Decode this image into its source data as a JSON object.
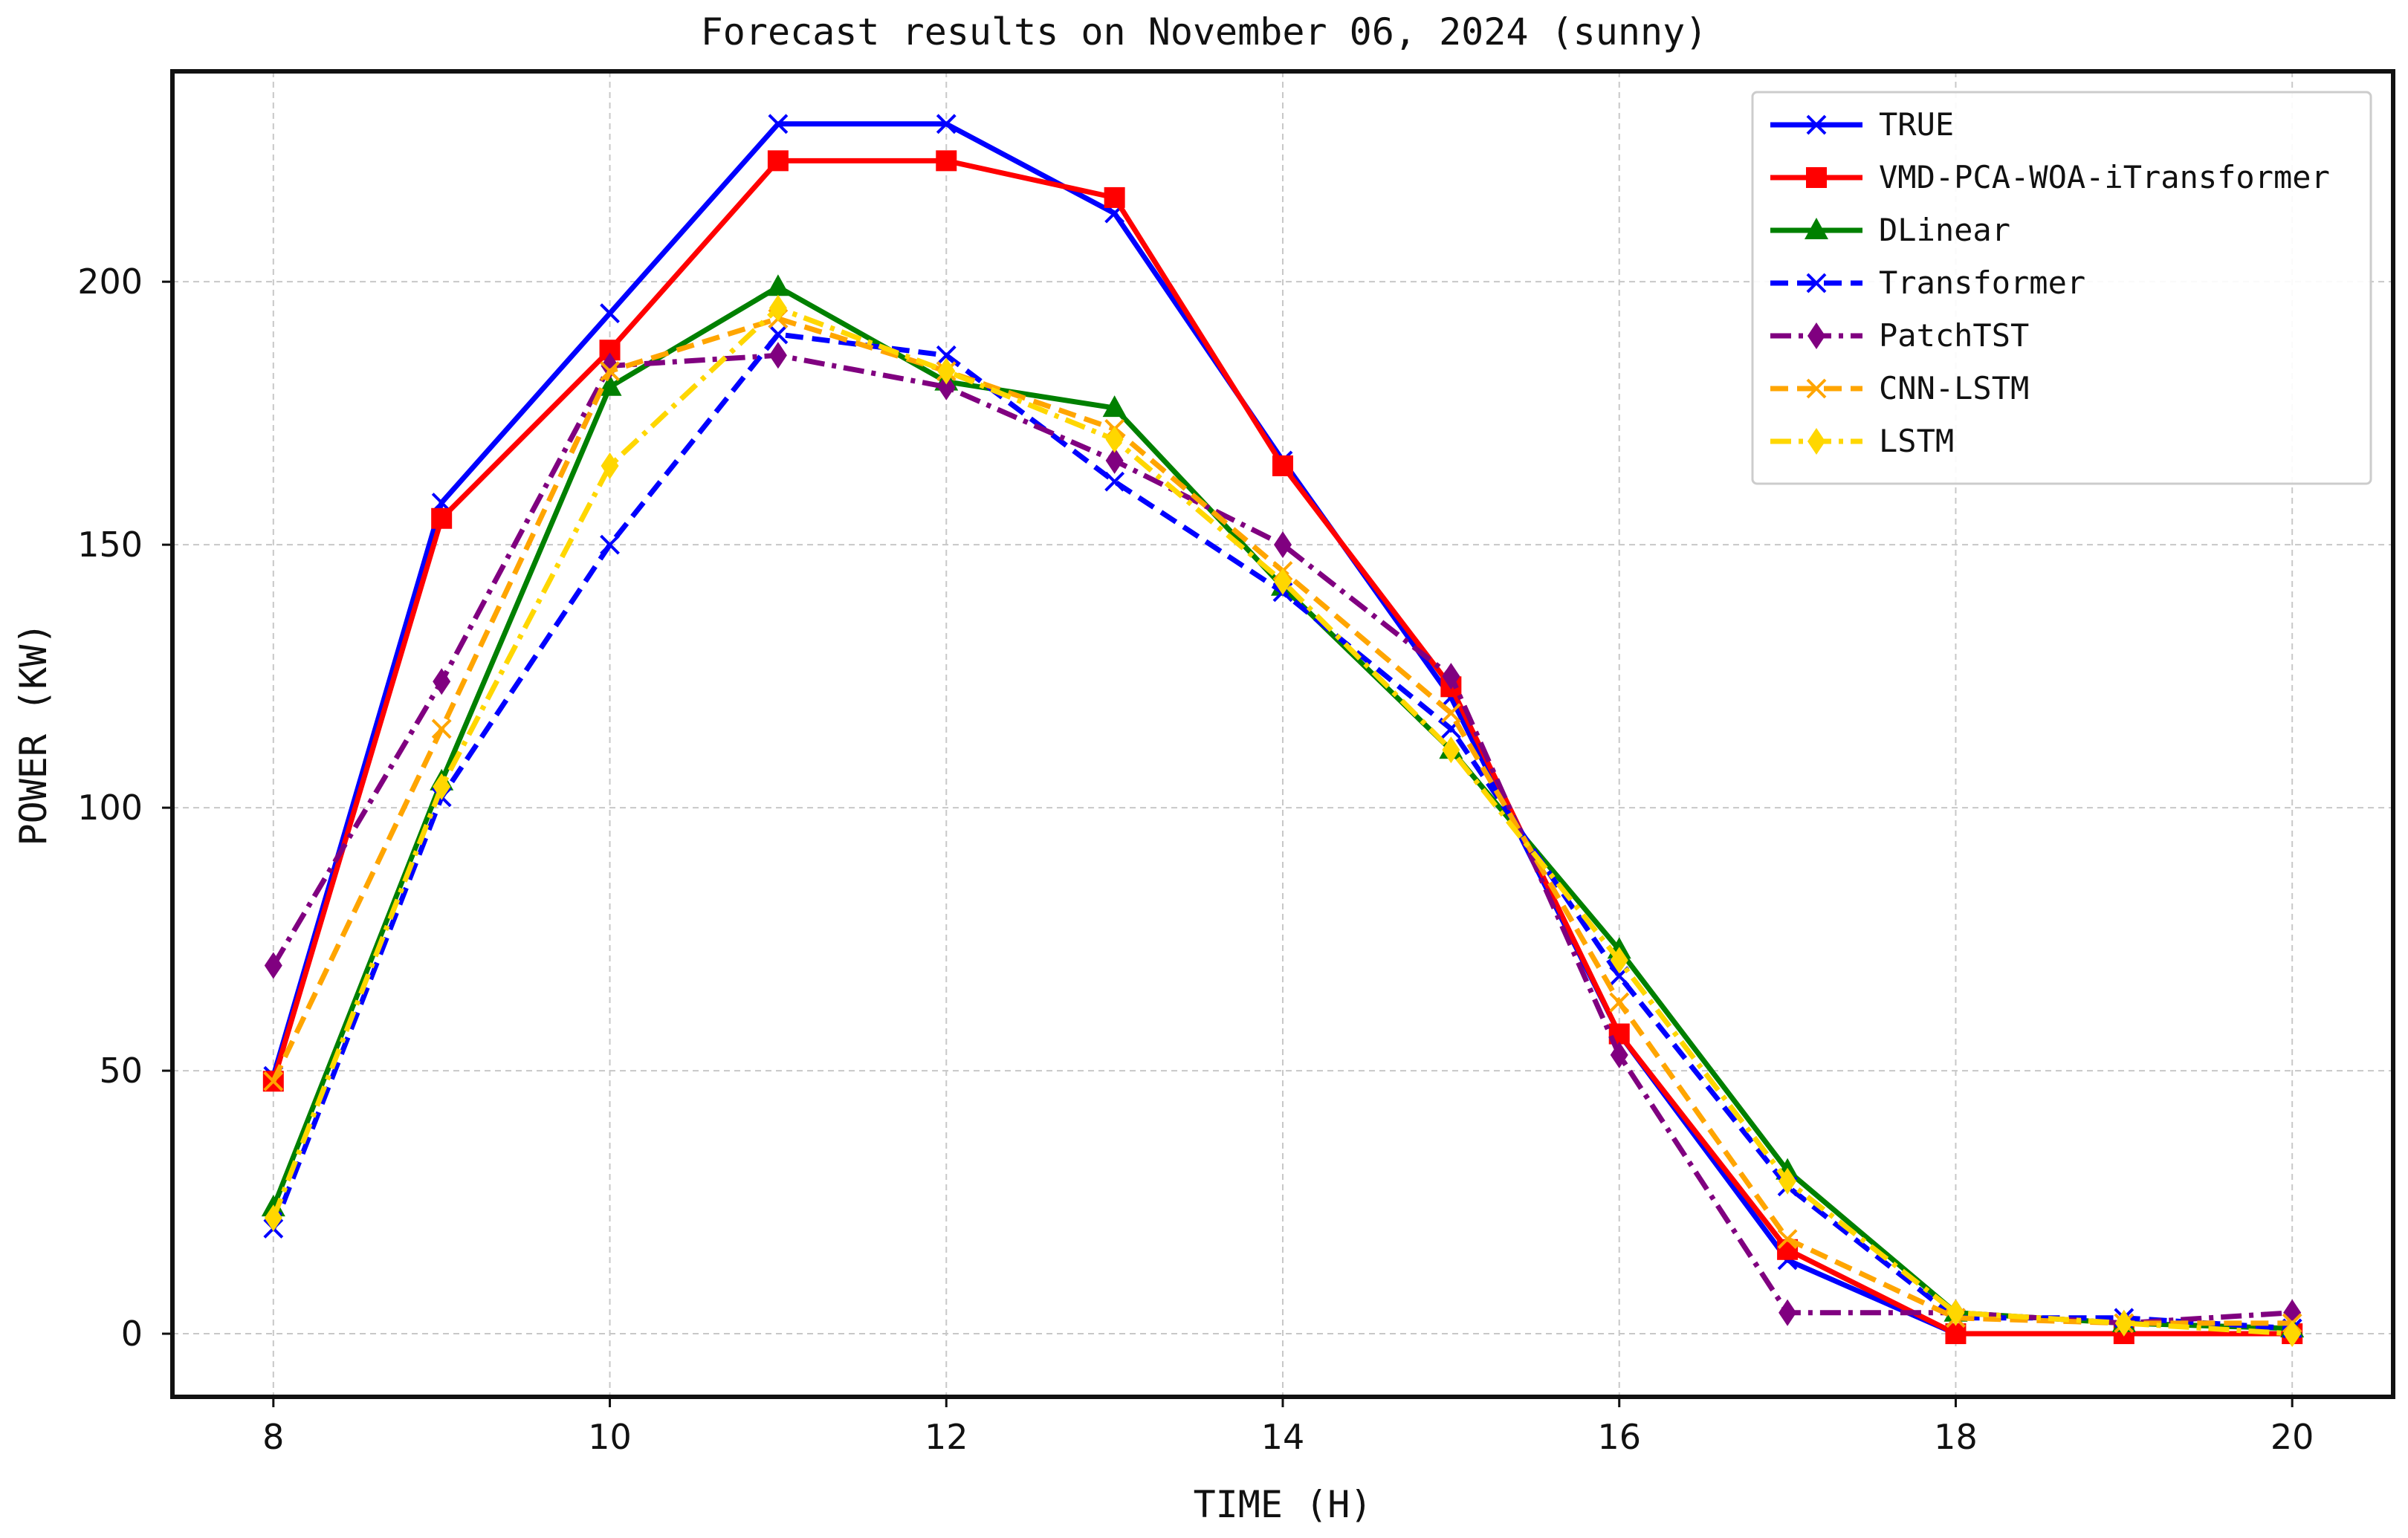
{
  "chart_data": {
    "type": "line",
    "title": "Forecast results on November 06, 2024 (sunny)",
    "xlabel": "TIME (H)",
    "ylabel": "POWER (KW)",
    "x": [
      8,
      9,
      10,
      11,
      12,
      13,
      14,
      15,
      16,
      17,
      18,
      19,
      20
    ],
    "xlim": [
      7.4,
      20.6
    ],
    "ylim": [
      -12,
      240
    ],
    "xticks": [
      8,
      10,
      12,
      14,
      16,
      18,
      20
    ],
    "yticks": [
      0,
      50,
      100,
      150,
      200
    ],
    "grid": true,
    "legend_position": "top-right",
    "series": [
      {
        "name": "TRUE",
        "color": "#0000ff",
        "linestyle": "solid",
        "marker": "x",
        "values": [
          49,
          158,
          194,
          230,
          230,
          213,
          166,
          121,
          57,
          14,
          0,
          0,
          0
        ]
      },
      {
        "name": "VMD-PCA-WOA-iTransformer",
        "color": "#ff0000",
        "linestyle": "solid",
        "marker": "square",
        "values": [
          48,
          155,
          187,
          223,
          223,
          216,
          165,
          123,
          57,
          16,
          0,
          0,
          0
        ]
      },
      {
        "name": "DLinear",
        "color": "#008000",
        "linestyle": "solid",
        "marker": "triangle",
        "values": [
          24,
          105,
          180,
          199,
          181,
          176,
          142,
          111,
          73,
          31,
          4,
          2,
          1
        ]
      },
      {
        "name": "Transformer",
        "color": "#0000ff",
        "linestyle": "dashed",
        "marker": "x",
        "values": [
          20,
          102,
          150,
          190,
          186,
          162,
          141,
          115,
          68,
          28,
          3,
          3,
          1
        ]
      },
      {
        "name": "PatchTST",
        "color": "#800080",
        "linestyle": "dashdot",
        "marker": "diamond",
        "values": [
          70,
          124,
          184,
          186,
          180,
          166,
          150,
          125,
          53,
          4,
          4,
          2,
          4
        ]
      },
      {
        "name": "CNN-LSTM",
        "color": "#ffa500",
        "linestyle": "dashed",
        "marker": "x",
        "values": [
          48,
          115,
          183,
          193,
          183,
          172,
          145,
          118,
          63,
          18,
          3,
          2,
          2
        ]
      },
      {
        "name": "LSTM",
        "color": "#ffd700",
        "linestyle": "dashdot",
        "marker": "diamond",
        "values": [
          22,
          104,
          165,
          195,
          183,
          170,
          143,
          111,
          71,
          29,
          4,
          2,
          0
        ]
      }
    ]
  }
}
